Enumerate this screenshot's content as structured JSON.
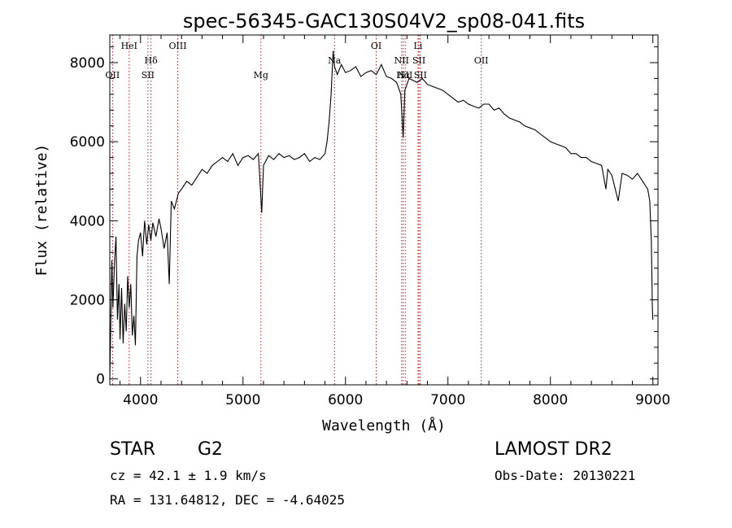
{
  "chart_data": {
    "type": "line",
    "title": "spec-56345-GAC130S04V2_sp08-041.fits",
    "xlabel": "Wavelength (Å)",
    "ylabel": "Flux (relative)",
    "xlim": [
      3700,
      9050
    ],
    "ylim": [
      -150,
      8700
    ],
    "xticks": [
      4000,
      5000,
      6000,
      7000,
      8000,
      9000
    ],
    "yticks": [
      0,
      2000,
      4000,
      6000,
      8000
    ],
    "grid": false,
    "series": [
      {
        "x": [
          3700,
          3710,
          3720,
          3730,
          3745,
          3760,
          3775,
          3790,
          3800,
          3815,
          3830,
          3845,
          3860,
          3875,
          3890,
          3905,
          3920,
          3935,
          3950,
          3965,
          3980,
          4000,
          4020,
          4040,
          4060,
          4080,
          4101,
          4120,
          4150,
          4180,
          4200,
          4230,
          4260,
          4280,
          4300,
          4330,
          4370,
          4400,
          4450,
          4500,
          4550,
          4600,
          4650,
          4700,
          4750,
          4800,
          4850,
          4900,
          4950,
          5000,
          5050,
          5100,
          5150,
          5183,
          5200,
          5250,
          5300,
          5350,
          5400,
          5450,
          5500,
          5550,
          5600,
          5650,
          5700,
          5750,
          5800,
          5820,
          5840,
          5860,
          5880,
          5893,
          5920,
          5960,
          6000,
          6050,
          6100,
          6150,
          6200,
          6250,
          6300,
          6350,
          6400,
          6450,
          6500,
          6540,
          6563,
          6580,
          6620,
          6660,
          6700,
          6750,
          6800,
          6850,
          6900,
          6950,
          7000,
          7050,
          7100,
          7150,
          7200,
          7250,
          7300,
          7350,
          7400,
          7450,
          7500,
          7550,
          7600,
          7650,
          7700,
          7750,
          7800,
          7850,
          7900,
          7950,
          8000,
          8050,
          8100,
          8150,
          8200,
          8250,
          8300,
          8350,
          8400,
          8450,
          8500,
          8542,
          8560,
          8600,
          8662,
          8700,
          8750,
          8800,
          8850,
          8900,
          8950,
          8970,
          8985,
          8995,
          9000
        ],
        "y": [
          0,
          1500,
          3000,
          1800,
          2900,
          3600,
          1500,
          2400,
          1000,
          2300,
          900,
          1900,
          1200,
          2600,
          1800,
          2400,
          1100,
          1600,
          850,
          3100,
          3500,
          3700,
          3100,
          4000,
          3400,
          3900,
          3500,
          3950,
          3600,
          4050,
          3800,
          3300,
          3700,
          2400,
          4500,
          4300,
          4700,
          4800,
          5000,
          4900,
          5100,
          5300,
          5200,
          5400,
          5500,
          5600,
          5500,
          5700,
          5400,
          5600,
          5650,
          5550,
          5700,
          4200,
          5400,
          5650,
          5550,
          5700,
          5600,
          5650,
          5550,
          5600,
          5700,
          5500,
          5600,
          5550,
          5700,
          6000,
          6500,
          7200,
          8300,
          7900,
          7700,
          7950,
          7750,
          7800,
          7900,
          7650,
          7750,
          7800,
          7700,
          7950,
          7650,
          7600,
          7500,
          7200,
          6100,
          7300,
          7600,
          7550,
          7500,
          7600,
          7450,
          7400,
          7350,
          7300,
          7200,
          7100,
          7000,
          7050,
          6950,
          6900,
          6850,
          6950,
          6950,
          6800,
          6850,
          6700,
          6600,
          6550,
          6500,
          6400,
          6350,
          6300,
          6200,
          6100,
          6000,
          5950,
          5900,
          5850,
          5700,
          5700,
          5600,
          5600,
          5500,
          5450,
          5400,
          4800,
          5300,
          5150,
          4500,
          5200,
          5150,
          5050,
          5200,
          5000,
          4800,
          4500,
          3500,
          1800,
          1500
        ]
      }
    ],
    "annotations": [
      {
        "label": "OII",
        "x": 3727,
        "row": 2
      },
      {
        "label": "HeI",
        "x": 3889,
        "row": 0
      },
      {
        "label": "Hδ",
        "x": 4102,
        "row": 1
      },
      {
        "label": "SII",
        "x": 4072,
        "row": 2
      },
      {
        "label": "OIII",
        "x": 4363,
        "row": 0
      },
      {
        "label": "Mg",
        "x": 5175,
        "row": 2
      },
      {
        "label": "Na",
        "x": 5893,
        "row": 1
      },
      {
        "label": "OI",
        "x": 6300,
        "row": 0
      },
      {
        "label": "NII",
        "x": 6548,
        "row": 1
      },
      {
        "label": "Hα",
        "x": 6563,
        "row": 2
      },
      {
        "label": "NII",
        "x": 6583,
        "row": 2
      },
      {
        "label": "SII",
        "x": 6717,
        "row": 1
      },
      {
        "label": "Li",
        "x": 6708,
        "row": 0
      },
      {
        "label": "SII",
        "x": 6731,
        "row": 2
      },
      {
        "label": "OII",
        "x": 7325,
        "row": 1
      }
    ]
  },
  "info": {
    "class": "STAR",
    "subclass": "G2",
    "survey": "LAMOST DR2",
    "cz": "cz = 42.1 ± 1.9 km/s",
    "obs_date": "Obs-Date: 20130221",
    "radec": "RA = 131.64812, DEC =  -4.64025"
  }
}
